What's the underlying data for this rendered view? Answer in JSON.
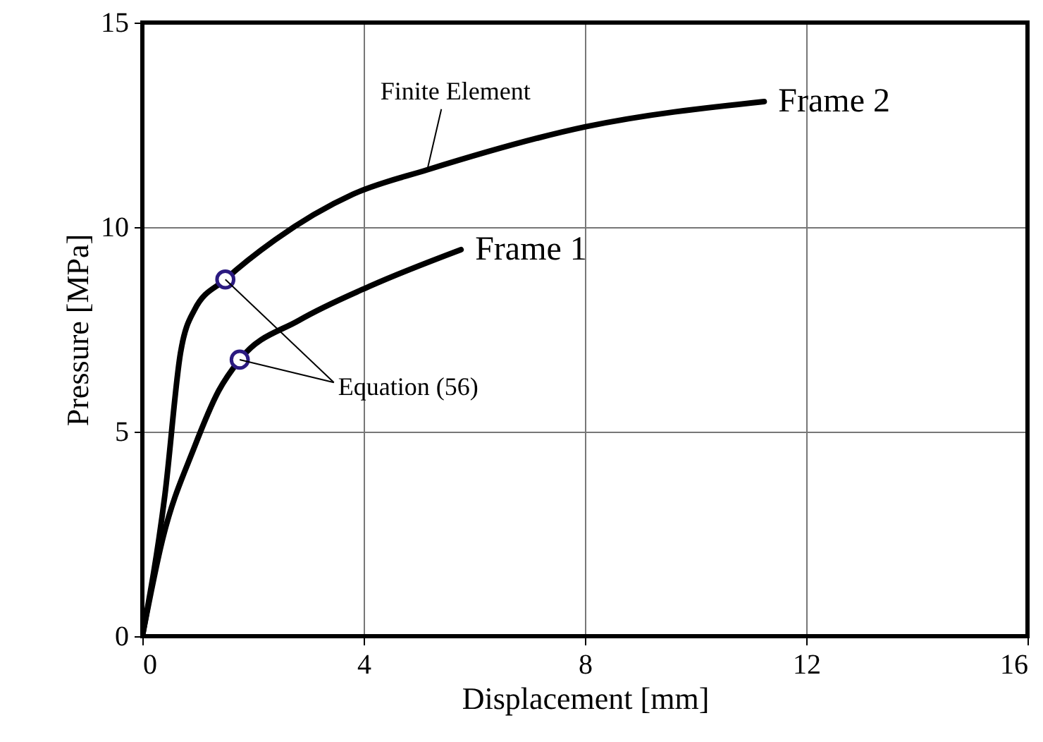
{
  "chart_data": {
    "type": "line",
    "xlabel": "Displacement [mm]",
    "ylabel": "Pressure [MPa]",
    "xlim": [
      0,
      16
    ],
    "xticks": [
      0,
      4,
      8,
      12,
      16
    ],
    "ylim": [
      0,
      15
    ],
    "yticks": [
      0,
      5,
      10,
      15
    ],
    "grid": true,
    "legend": false,
    "line_style": "solid",
    "marker": "none",
    "series": [
      {
        "name": "Frame 2",
        "color": "#000000",
        "x": [
          0,
          0.41,
          0.69,
          0.94,
          1.5,
          2.4,
          3.8,
          5.15,
          8.0,
          11.24
        ],
        "values": [
          0,
          3.48,
          6.93,
          7.97,
          8.72,
          9.69,
          10.8,
          11.4,
          12.45,
          13.07
        ]
      },
      {
        "name": "Frame 1",
        "color": "#000000",
        "x": [
          0,
          0.36,
          0.94,
          1.38,
          1.76,
          2.83,
          4.1,
          5.76
        ],
        "values": [
          0,
          2.34,
          4.62,
          6.0,
          6.76,
          7.72,
          8.55,
          9.45
        ]
      },
      {
        "type": "scatter",
        "marker": "circle",
        "color": "#2b1a80",
        "x": [
          1.5,
          1.76
        ],
        "values": [
          8.72,
          6.76
        ]
      }
    ],
    "annotations": [
      {
        "text": "Finite Element",
        "x": 5.15,
        "y": 11.4
      },
      {
        "text": "Equation (56)",
        "x": 1.5,
        "y": 8.72
      }
    ]
  }
}
